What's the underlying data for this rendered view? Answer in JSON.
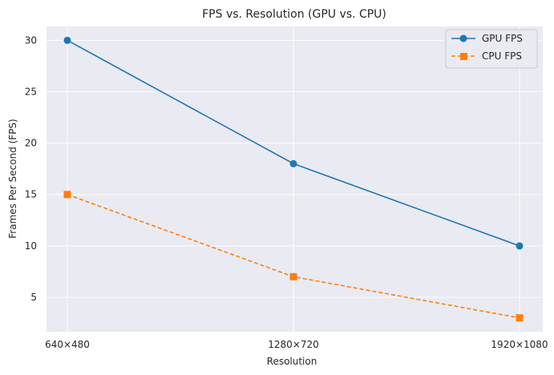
{
  "chart_data": {
    "type": "line",
    "title": "FPS vs. Resolution (GPU vs. CPU)",
    "xlabel": "Resolution",
    "ylabel": "Frames Per Second (FPS)",
    "categories": [
      "640×480",
      "1280×720",
      "1920×1080"
    ],
    "y_ticks": [
      "5",
      "10",
      "15",
      "20",
      "25",
      "30"
    ],
    "ylim": [
      1.65,
      31.35
    ],
    "grid": true,
    "legend_position": "top-right",
    "series": [
      {
        "name": "GPU FPS",
        "values": [
          30,
          18,
          10
        ],
        "color": "#1f77b4",
        "marker": "circle",
        "line_style": "solid"
      },
      {
        "name": "CPU FPS",
        "values": [
          15,
          7,
          3
        ],
        "color": "#ff7f0e",
        "marker": "square",
        "line_style": "dashed"
      }
    ]
  }
}
